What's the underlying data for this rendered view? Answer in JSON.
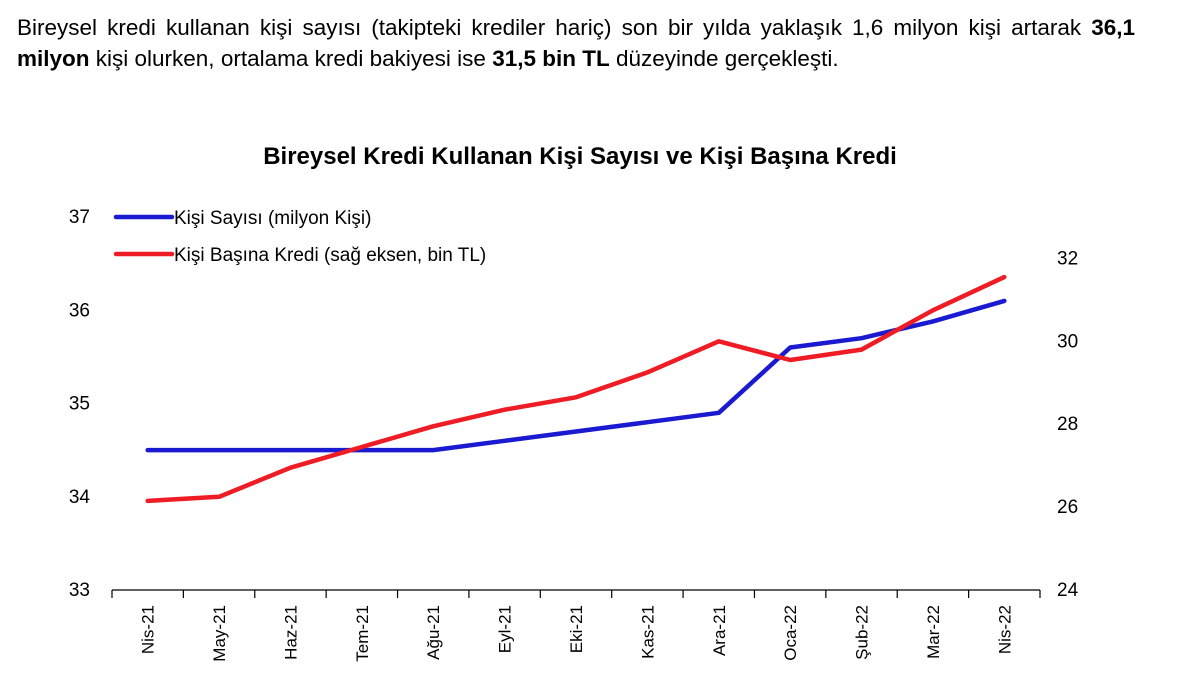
{
  "intro": {
    "part1": "Bireysel kredi kullanan kişi sayısı (takipteki krediler hariç) son bir yılda yaklaşık 1,6 milyon kişi artarak ",
    "bold1": "36,1 milyon",
    "part2": " kişi olurken, ortalama kredi bakiyesi ise ",
    "bold2": "31,5 bin TL",
    "part3": " düzeyinde gerçekleşti."
  },
  "chart_data": {
    "type": "line",
    "title": "Bireysel Kredi Kullanan Kişi Sayısı ve Kişi Başına Kredi",
    "categories": [
      "Nis-21",
      "May-21",
      "Haz-21",
      "Tem-21",
      "Ağu-21",
      "Eyl-21",
      "Eki-21",
      "Kas-21",
      "Ara-21",
      "Oca-22",
      "Şub-22",
      "Mar-22",
      "Nis-22"
    ],
    "y_left": {
      "min": 33,
      "max": 37,
      "ticks": [
        "33",
        "34",
        "35",
        "36",
        "37"
      ]
    },
    "y_right": {
      "min": 24,
      "max": 33,
      "ticks": [
        "24",
        "26",
        "28",
        "30",
        "32"
      ]
    },
    "series": [
      {
        "name": "Kişi Sayısı (milyon Kişi)",
        "axis": "left",
        "color": "#1a1ad1",
        "values": [
          34.5,
          34.5,
          34.5,
          34.5,
          34.5,
          34.6,
          34.7,
          34.8,
          34.9,
          35.6,
          35.7,
          35.88,
          36.1
        ]
      },
      {
        "name": "Kişi Başına Kredi (sağ eksen, bin TL)",
        "axis": "right",
        "color": "#ee1c25",
        "values": [
          26.15,
          26.25,
          26.95,
          27.45,
          27.95,
          28.35,
          28.65,
          29.25,
          30.0,
          29.55,
          29.8,
          30.75,
          31.55
        ]
      }
    ],
    "legend": "top-left",
    "grid": false
  }
}
